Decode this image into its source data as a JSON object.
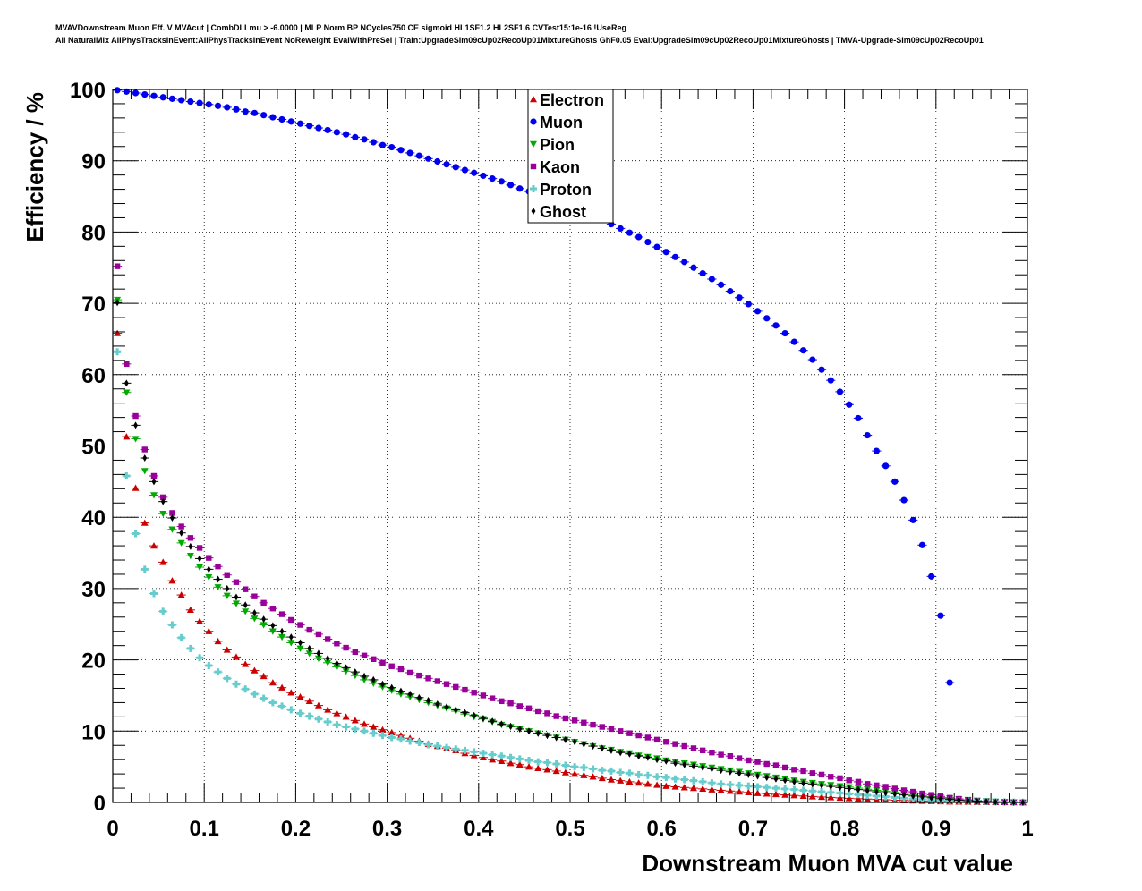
{
  "header": {
    "line1": "MVAVDownstream Muon Eff. V MVAcut | CombDLLmu > -6.0000 | MLP Norm BP NCycles750 CE sigmoid HL1SF1.2 HL2SF1.6 CVTest15:1e-16 !UseReg",
    "line2": "All NaturalMix AllPhysTracksInEvent:AllPhysTracksInEvent NoReweight EvalWithPreSel | Train:UpgradeSim09cUp02RecoUp01MixtureGhosts GhF0.05 Eval:UpgradeSim09cUp02RecoUp01MixtureGhosts | TMVA-Upgrade-Sim09cUp02RecoUp01"
  },
  "chart_data": {
    "type": "scatter",
    "xlabel": "Downstream Muon MVA cut value",
    "ylabel": "Efficiency / %",
    "xlim": [
      0,
      1
    ],
    "ylim": [
      0,
      100
    ],
    "x_ticks": [
      "0",
      "0.1",
      "0.2",
      "0.3",
      "0.4",
      "0.5",
      "0.6",
      "0.7",
      "0.8",
      "0.9",
      "1"
    ],
    "y_ticks": [
      "0",
      "10",
      "20",
      "30",
      "40",
      "50",
      "60",
      "70",
      "80",
      "90",
      "100"
    ],
    "grid": true,
    "legend_position": "top-center",
    "x_start": 0.005,
    "x_step": 0.01,
    "series": [
      {
        "name": "Electron",
        "color": "#cc0000",
        "marker": "triangle-up",
        "values": [
          65.8,
          51.3,
          44.1,
          39.2,
          36.0,
          33.7,
          31.1,
          29.1,
          27.0,
          25.4,
          24.0,
          22.6,
          21.4,
          20.4,
          19.4,
          18.5,
          17.7,
          16.8,
          16.1,
          15.4,
          14.8,
          14.2,
          13.6,
          13.0,
          12.5,
          12.0,
          11.5,
          11.0,
          10.6,
          10.2,
          9.8,
          9.4,
          9.0,
          8.6,
          8.2,
          7.9,
          7.6,
          7.3,
          6.9,
          6.6,
          6.3,
          6.0,
          5.8,
          5.5,
          5.3,
          5.0,
          4.8,
          4.6,
          4.4,
          4.2,
          4.0,
          3.8,
          3.6,
          3.4,
          3.2,
          3.05,
          2.9,
          2.75,
          2.6,
          2.45,
          2.3,
          2.2,
          2.1,
          2.0,
          1.9,
          1.8,
          1.7,
          1.6,
          1.5,
          1.4,
          1.3,
          1.22,
          1.14,
          1.06,
          0.98,
          0.9,
          0.83,
          0.76,
          0.7,
          0.64,
          0.58,
          0.52,
          0.47,
          0.42,
          0.37,
          0.32,
          0.28,
          0.24,
          0.2,
          0.17,
          0.14,
          0.11,
          0.09,
          0.07,
          0.05,
          0.04,
          0.03,
          0.02,
          0.01,
          0.0
        ]
      },
      {
        "name": "Muon",
        "color": "#0000ee",
        "marker": "circle",
        "values": [
          99.9,
          99.7,
          99.5,
          99.3,
          99.1,
          98.9,
          98.7,
          98.5,
          98.3,
          98.1,
          97.9,
          97.7,
          97.5,
          97.2,
          96.9,
          96.7,
          96.4,
          96.1,
          95.8,
          95.5,
          95.2,
          94.9,
          94.6,
          94.3,
          94.0,
          93.7,
          93.3,
          93.0,
          92.6,
          92.2,
          91.9,
          91.5,
          91.1,
          90.7,
          90.3,
          89.9,
          89.5,
          89.1,
          88.7,
          88.3,
          87.9,
          87.5,
          87.1,
          86.6,
          86.1,
          85.7,
          85.2,
          84.7,
          84.2,
          83.7,
          83.2,
          82.7,
          82.2,
          81.7,
          81.1,
          80.5,
          79.9,
          79.3,
          78.6,
          77.9,
          77.2,
          76.5,
          75.8,
          75.0,
          74.2,
          73.4,
          72.6,
          71.7,
          70.8,
          69.9,
          68.9,
          67.9,
          66.9,
          65.8,
          64.6,
          63.4,
          62.1,
          60.7,
          59.2,
          57.6,
          55.8,
          53.9,
          51.5,
          49.3,
          47.2,
          45.0,
          42.4,
          39.6,
          36.1,
          31.7,
          26.2,
          16.8
        ]
      },
      {
        "name": "Pion",
        "color": "#00aa00",
        "marker": "triangle-down",
        "values": [
          70.5,
          57.5,
          51.0,
          46.5,
          43.1,
          40.5,
          38.3,
          36.4,
          34.6,
          33.0,
          31.6,
          30.2,
          29.0,
          27.9,
          26.8,
          25.8,
          24.9,
          24.0,
          23.2,
          22.4,
          21.6,
          20.9,
          20.2,
          19.6,
          19.0,
          18.4,
          17.8,
          17.2,
          16.7,
          16.2,
          15.7,
          15.2,
          14.8,
          14.4,
          14.0,
          13.6,
          13.2,
          12.8,
          12.4,
          12.0,
          11.7,
          11.3,
          10.9,
          10.6,
          10.3,
          10.0,
          9.7,
          9.4,
          9.1,
          8.8,
          8.5,
          8.2,
          7.9,
          7.6,
          7.4,
          7.1,
          6.9,
          6.6,
          6.4,
          6.2,
          5.9,
          5.7,
          5.5,
          5.3,
          5.1,
          4.9,
          4.7,
          4.5,
          4.3,
          4.1,
          3.9,
          3.7,
          3.5,
          3.3,
          3.1,
          2.9,
          2.75,
          2.6,
          2.45,
          2.3,
          2.15,
          2.0,
          1.85,
          1.7,
          1.55,
          1.4,
          1.25,
          1.1,
          0.95,
          0.82,
          0.7,
          0.58,
          0.47,
          0.37,
          0.28,
          0.2,
          0.13,
          0.08,
          0.04,
          0.01
        ]
      },
      {
        "name": "Kaon",
        "color": "#990099",
        "marker": "square",
        "values": [
          75.2,
          61.5,
          54.2,
          49.5,
          45.8,
          42.8,
          40.6,
          38.7,
          37.1,
          35.7,
          34.3,
          33.1,
          31.9,
          30.9,
          29.9,
          28.9,
          28.0,
          27.2,
          26.4,
          25.6,
          24.9,
          24.2,
          23.6,
          22.9,
          22.3,
          21.7,
          21.1,
          20.6,
          20.1,
          19.6,
          19.1,
          18.7,
          18.2,
          17.8,
          17.4,
          17.0,
          16.6,
          16.2,
          15.8,
          15.4,
          15.0,
          14.6,
          14.2,
          13.9,
          13.5,
          13.2,
          12.8,
          12.5,
          12.1,
          11.8,
          11.5,
          11.2,
          10.9,
          10.6,
          10.3,
          10.0,
          9.7,
          9.4,
          9.1,
          8.8,
          8.5,
          8.2,
          7.9,
          7.6,
          7.3,
          7.0,
          6.7,
          6.5,
          6.2,
          5.9,
          5.7,
          5.4,
          5.2,
          4.9,
          4.6,
          4.4,
          4.1,
          3.9,
          3.6,
          3.4,
          3.1,
          2.9,
          2.6,
          2.4,
          2.2,
          1.95,
          1.7,
          1.5,
          1.25,
          1.05,
          0.85,
          0.65,
          0.5,
          0.35,
          0.22,
          0.13,
          0.07,
          0.03,
          0.01,
          0.0
        ]
      },
      {
        "name": "Proton",
        "color": "#66cccc",
        "marker": "cross",
        "values": [
          63.2,
          45.8,
          37.7,
          32.7,
          29.3,
          26.8,
          24.9,
          23.1,
          21.6,
          20.3,
          19.2,
          18.3,
          17.4,
          16.6,
          15.9,
          15.2,
          14.6,
          14.0,
          13.5,
          13.0,
          12.5,
          12.1,
          11.7,
          11.3,
          10.9,
          10.6,
          10.3,
          10.0,
          9.7,
          9.4,
          9.1,
          8.9,
          8.6,
          8.4,
          8.1,
          7.9,
          7.7,
          7.5,
          7.3,
          7.1,
          6.9,
          6.7,
          6.5,
          6.3,
          6.1,
          5.9,
          5.7,
          5.6,
          5.4,
          5.2,
          5.0,
          4.9,
          4.7,
          4.5,
          4.4,
          4.2,
          4.1,
          3.9,
          3.8,
          3.6,
          3.5,
          3.3,
          3.2,
          3.05,
          2.9,
          2.75,
          2.6,
          2.5,
          2.4,
          2.3,
          2.2,
          2.1,
          2.0,
          1.9,
          1.8,
          1.7,
          1.6,
          1.5,
          1.4,
          1.3,
          1.2,
          1.1,
          1.0,
          0.9,
          0.8,
          0.7,
          0.6,
          0.5,
          0.42,
          0.35,
          0.3,
          0.26,
          0.22,
          0.18,
          0.15,
          0.12,
          0.09,
          0.07,
          0.05,
          0.03
        ]
      },
      {
        "name": "Ghost",
        "color": "#000000",
        "marker": "diamond",
        "values": [
          70.1,
          58.8,
          52.9,
          48.3,
          45.0,
          42.2,
          39.9,
          37.8,
          35.9,
          34.2,
          32.7,
          31.3,
          30.0,
          28.8,
          27.7,
          26.6,
          25.7,
          24.8,
          24.0,
          23.2,
          22.4,
          21.6,
          20.9,
          20.2,
          19.5,
          18.9,
          18.3,
          17.7,
          17.2,
          16.6,
          16.1,
          15.6,
          15.2,
          14.7,
          14.3,
          13.8,
          13.4,
          13.0,
          12.6,
          12.2,
          11.8,
          11.4,
          11.0,
          10.7,
          10.3,
          10.0,
          9.7,
          9.4,
          9.1,
          8.8,
          8.5,
          8.2,
          7.9,
          7.6,
          7.3,
          7.0,
          6.8,
          6.5,
          6.3,
          6.0,
          5.8,
          5.5,
          5.3,
          5.1,
          4.9,
          4.7,
          4.5,
          4.3,
          4.1,
          3.9,
          3.7,
          3.5,
          3.3,
          3.1,
          2.9,
          2.7,
          2.55,
          2.4,
          2.25,
          2.1,
          1.95,
          1.8,
          1.65,
          1.5,
          1.35,
          1.2,
          1.05,
          0.9,
          0.77,
          0.65,
          0.53,
          0.42,
          0.33,
          0.25,
          0.18,
          0.12,
          0.07,
          0.04,
          0.02,
          0.0
        ]
      }
    ]
  }
}
